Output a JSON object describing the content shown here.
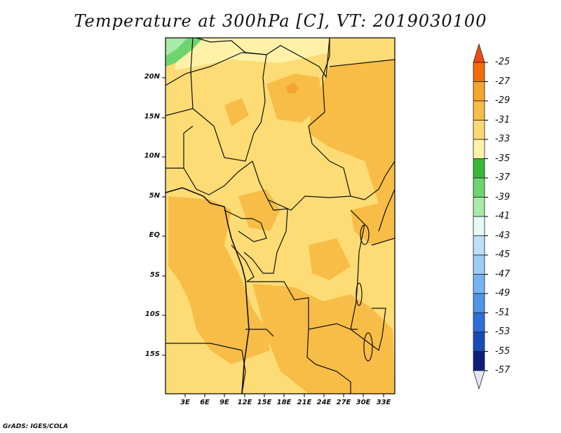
{
  "title": "Temperature at 300hPa [C], VT: 2019030100",
  "credit": "GrADS: IGES/COLA",
  "latitude_labels": [
    "20N",
    "15N",
    "10N",
    "5N",
    "EQ",
    "5S",
    "10S",
    "15S"
  ],
  "longitude_labels": [
    "3E",
    "6E",
    "9E",
    "12E",
    "15E",
    "18E",
    "21E",
    "24E",
    "27E",
    "30E",
    "33E"
  ],
  "colorbar": {
    "labels": [
      "-25",
      "-27",
      "-29",
      "-31",
      "-33",
      "-35",
      "-37",
      "-39",
      "-41",
      "-43",
      "-45",
      "-47",
      "-49",
      "-51",
      "-53",
      "-55",
      "-57"
    ],
    "colors": [
      "#f04a12",
      "#f06e0a",
      "#f5a52e",
      "#f8bd47",
      "#fcd874",
      "#fff2a8",
      "#3ab83a",
      "#6fd46f",
      "#a8eaa8",
      "#e4fcf4",
      "#bde0fa",
      "#9ccdf6",
      "#74b4f0",
      "#4f94e6",
      "#2f6ed8",
      "#184cb5",
      "#0e1f7a",
      "#e6e6fa"
    ]
  },
  "map_colors": {
    "t31": "#fddc76",
    "t29": "#f8bd47",
    "t27": "#f5a52e",
    "t33": "#fff2a8",
    "t35": "#6fd46f",
    "t37": "#a8eaa8",
    "border": "#111111"
  }
}
